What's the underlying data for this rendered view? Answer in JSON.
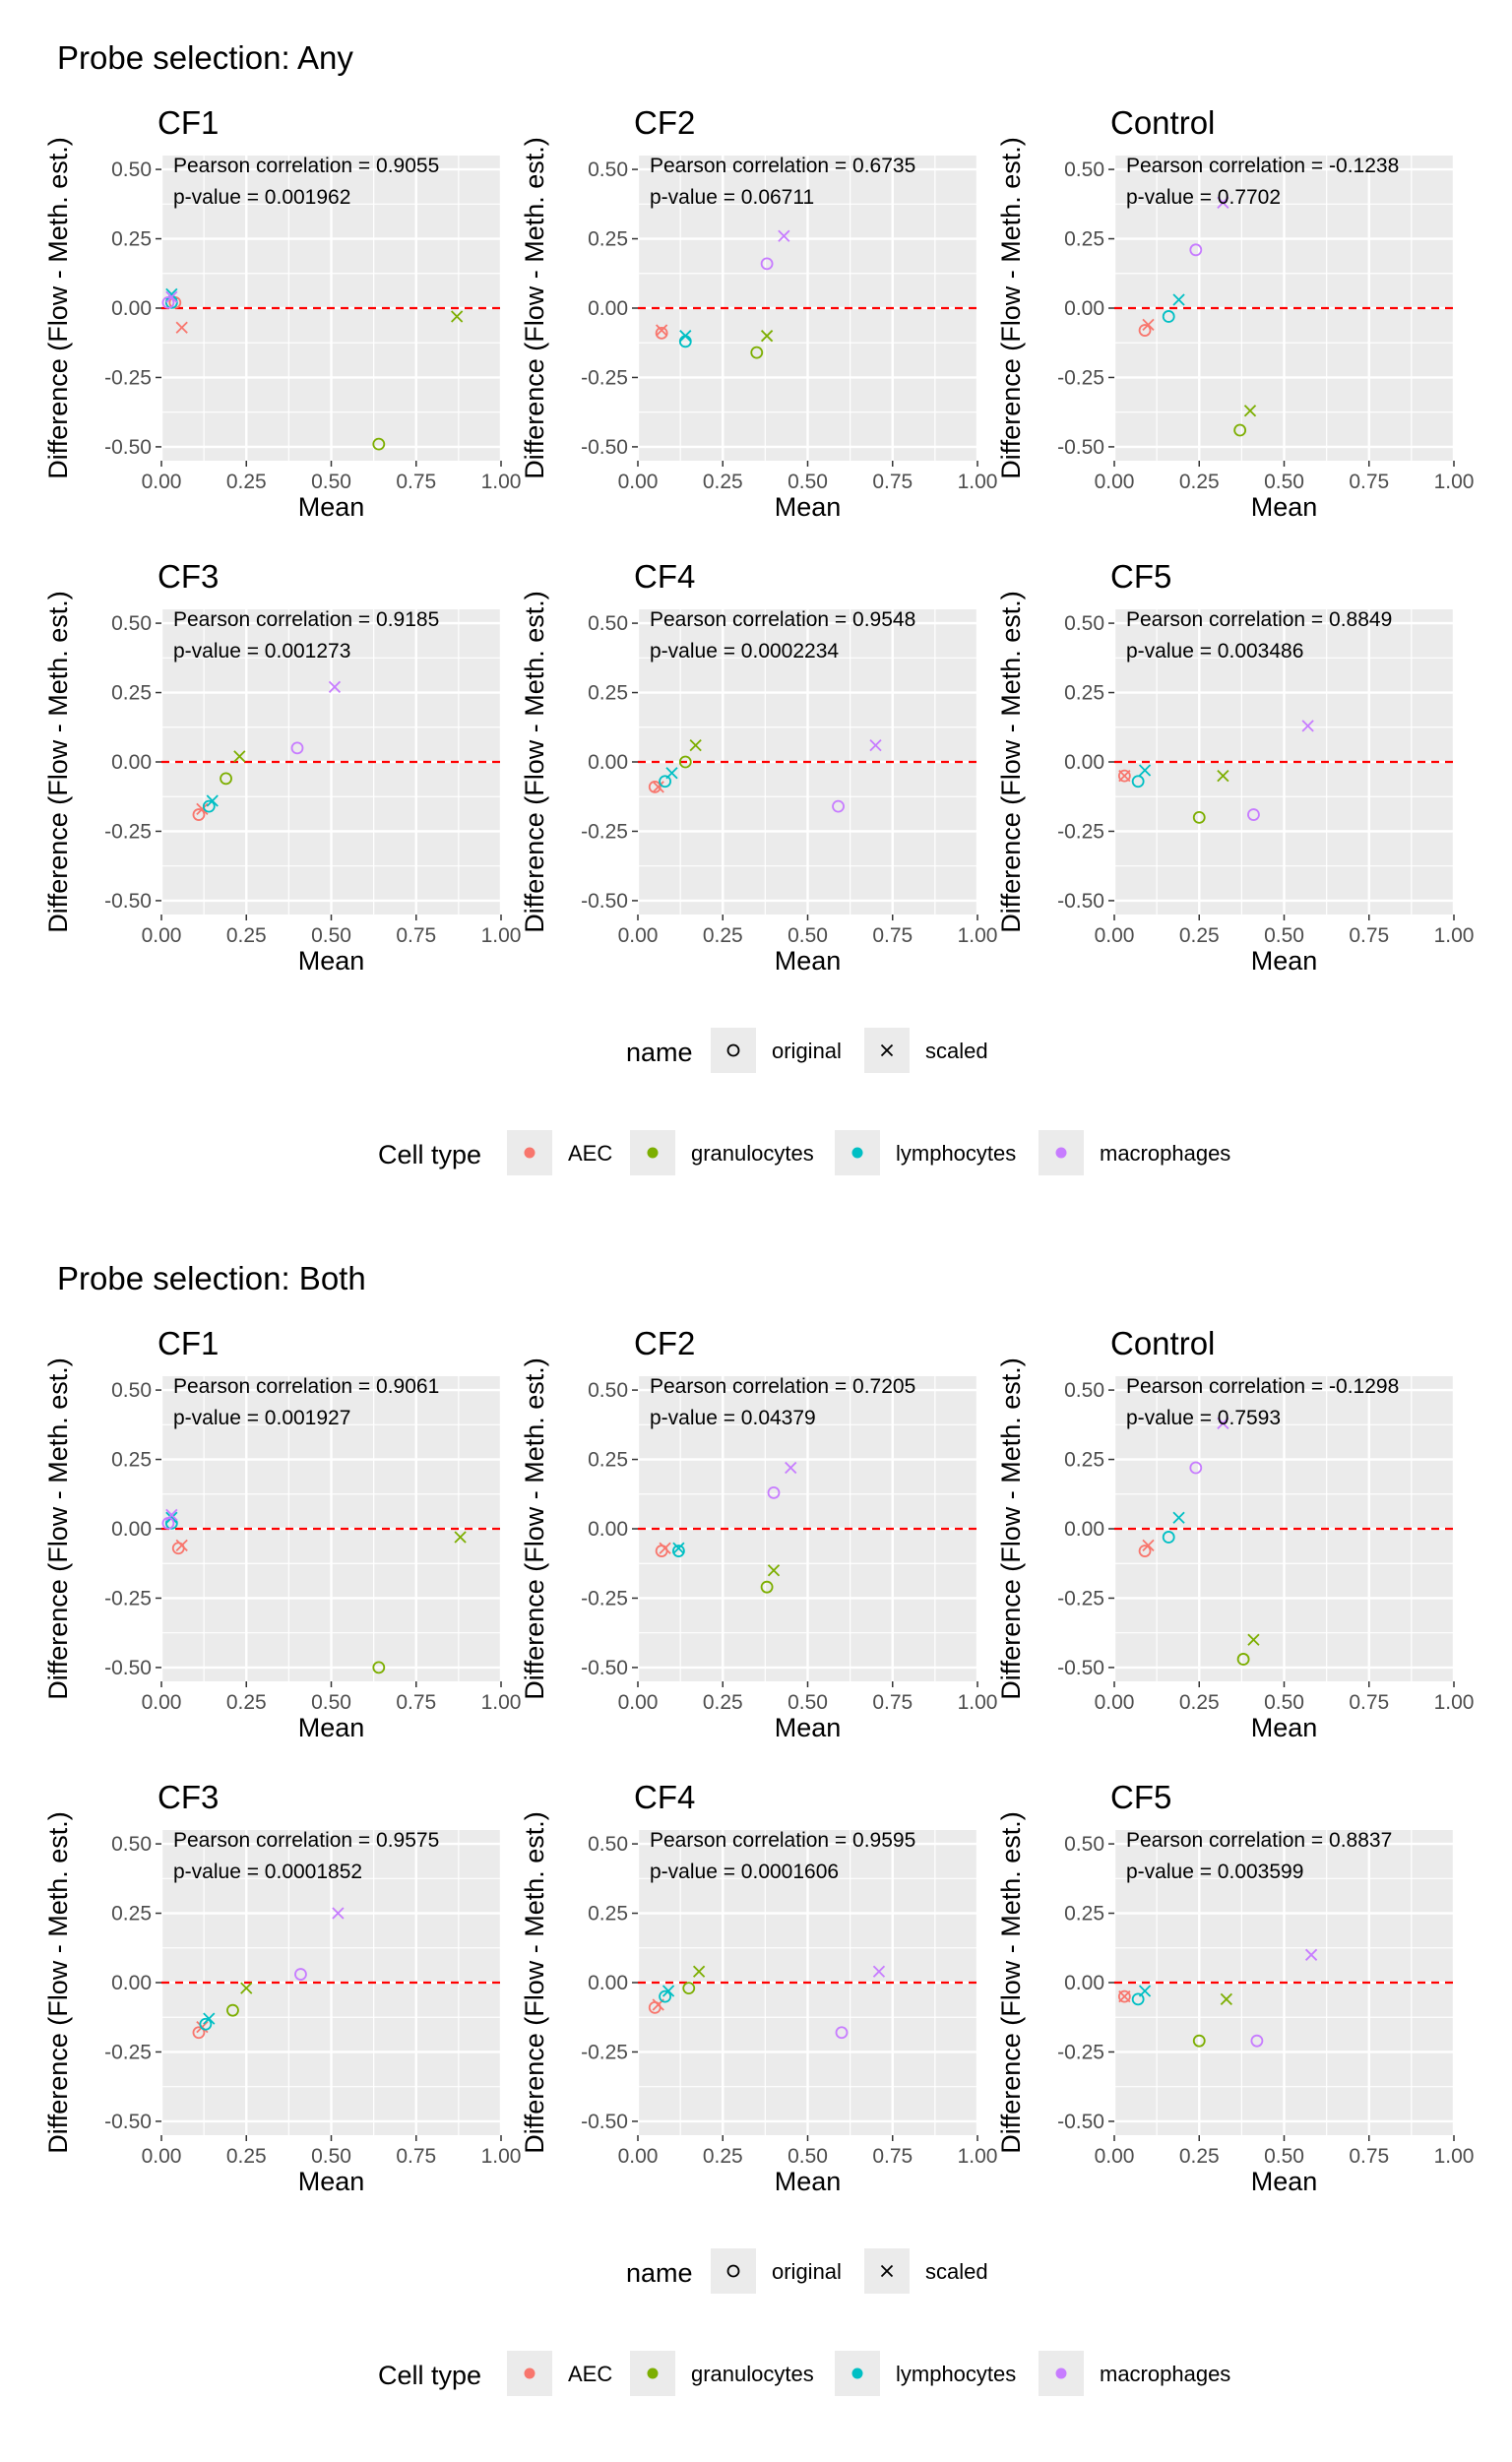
{
  "colors": {
    "AEC": "#F8766D",
    "granulocytes": "#7CAE00",
    "lymphocytes": "#00BFC4",
    "macrophages": "#C77CFF",
    "panel_bg": "#EBEBEB",
    "grid": "#FFFFFF",
    "ref_line": "#FF0000"
  },
  "legend": {
    "name_title": "name",
    "shape_items": [
      {
        "key": "original",
        "label": "original",
        "shape": "circle"
      },
      {
        "key": "scaled",
        "label": "scaled",
        "shape": "cross"
      }
    ],
    "color_title": "Cell type",
    "color_items": [
      {
        "key": "AEC",
        "label": "AEC"
      },
      {
        "key": "granulocytes",
        "label": "granulocytes"
      },
      {
        "key": "lymphocytes",
        "label": "lymphocytes"
      },
      {
        "key": "macrophages",
        "label": "macrophages"
      }
    ]
  },
  "chart_data": [
    {
      "type": "scatter",
      "title": "Probe selection: Any",
      "xlabel": "Mean",
      "ylabel": "Difference (Flow - Meth. est.)",
      "xlim": [
        0,
        1
      ],
      "ylim": [
        -0.55,
        0.55
      ],
      "x_ticks": [
        "0.00",
        "0.25",
        "0.50",
        "0.75",
        "1.00"
      ],
      "y_ticks": [
        "-0.50",
        "-0.25",
        "0.00",
        "0.25",
        "0.50"
      ],
      "reference_line_y": 0,
      "grid": true,
      "panels": [
        {
          "name": "CF1",
          "corr_label": "Pearson correlation = 0.9055",
          "p_label": "p-value = 0.001962",
          "points": [
            {
              "cell": "AEC",
              "type": "original",
              "x": 0.04,
              "y": 0.02
            },
            {
              "cell": "AEC",
              "type": "scaled",
              "x": 0.06,
              "y": -0.07
            },
            {
              "cell": "granulocytes",
              "type": "original",
              "x": 0.64,
              "y": -0.49
            },
            {
              "cell": "granulocytes",
              "type": "scaled",
              "x": 0.87,
              "y": -0.03
            },
            {
              "cell": "lymphocytes",
              "type": "original",
              "x": 0.03,
              "y": 0.02
            },
            {
              "cell": "lymphocytes",
              "type": "scaled",
              "x": 0.03,
              "y": 0.05
            },
            {
              "cell": "macrophages",
              "type": "original",
              "x": 0.02,
              "y": 0.02
            },
            {
              "cell": "macrophages",
              "type": "scaled",
              "x": 0.03,
              "y": 0.04
            }
          ]
        },
        {
          "name": "CF2",
          "corr_label": "Pearson correlation = 0.6735",
          "p_label": "p-value = 0.06711",
          "points": [
            {
              "cell": "AEC",
              "type": "original",
              "x": 0.07,
              "y": -0.09
            },
            {
              "cell": "AEC",
              "type": "scaled",
              "x": 0.07,
              "y": -0.08
            },
            {
              "cell": "granulocytes",
              "type": "original",
              "x": 0.35,
              "y": -0.16
            },
            {
              "cell": "granulocytes",
              "type": "scaled",
              "x": 0.38,
              "y": -0.1
            },
            {
              "cell": "lymphocytes",
              "type": "original",
              "x": 0.14,
              "y": -0.12
            },
            {
              "cell": "lymphocytes",
              "type": "scaled",
              "x": 0.14,
              "y": -0.1
            },
            {
              "cell": "macrophages",
              "type": "original",
              "x": 0.38,
              "y": 0.16
            },
            {
              "cell": "macrophages",
              "type": "scaled",
              "x": 0.43,
              "y": 0.26
            }
          ]
        },
        {
          "name": "Control",
          "corr_label": "Pearson correlation = -0.1238",
          "p_label": "p-value = 0.7702",
          "points": [
            {
              "cell": "AEC",
              "type": "original",
              "x": 0.09,
              "y": -0.08
            },
            {
              "cell": "AEC",
              "type": "scaled",
              "x": 0.1,
              "y": -0.06
            },
            {
              "cell": "granulocytes",
              "type": "original",
              "x": 0.37,
              "y": -0.44
            },
            {
              "cell": "granulocytes",
              "type": "scaled",
              "x": 0.4,
              "y": -0.37
            },
            {
              "cell": "lymphocytes",
              "type": "original",
              "x": 0.16,
              "y": -0.03
            },
            {
              "cell": "lymphocytes",
              "type": "scaled",
              "x": 0.19,
              "y": 0.03
            },
            {
              "cell": "macrophages",
              "type": "original",
              "x": 0.24,
              "y": 0.21
            },
            {
              "cell": "macrophages",
              "type": "scaled",
              "x": 0.32,
              "y": 0.38
            }
          ]
        },
        {
          "name": "CF3",
          "corr_label": "Pearson correlation = 0.9185",
          "p_label": "p-value = 0.001273",
          "points": [
            {
              "cell": "AEC",
              "type": "original",
              "x": 0.11,
              "y": -0.19
            },
            {
              "cell": "AEC",
              "type": "scaled",
              "x": 0.12,
              "y": -0.17
            },
            {
              "cell": "granulocytes",
              "type": "original",
              "x": 0.19,
              "y": -0.06
            },
            {
              "cell": "granulocytes",
              "type": "scaled",
              "x": 0.23,
              "y": 0.02
            },
            {
              "cell": "lymphocytes",
              "type": "original",
              "x": 0.14,
              "y": -0.16
            },
            {
              "cell": "lymphocytes",
              "type": "scaled",
              "x": 0.15,
              "y": -0.14
            },
            {
              "cell": "macrophages",
              "type": "original",
              "x": 0.4,
              "y": 0.05
            },
            {
              "cell": "macrophages",
              "type": "scaled",
              "x": 0.51,
              "y": 0.27
            }
          ]
        },
        {
          "name": "CF4",
          "corr_label": "Pearson correlation = 0.9548",
          "p_label": "p-value = 0.0002234",
          "points": [
            {
              "cell": "AEC",
              "type": "original",
              "x": 0.05,
              "y": -0.09
            },
            {
              "cell": "AEC",
              "type": "scaled",
              "x": 0.06,
              "y": -0.09
            },
            {
              "cell": "granulocytes",
              "type": "original",
              "x": 0.14,
              "y": 0.0
            },
            {
              "cell": "granulocytes",
              "type": "scaled",
              "x": 0.17,
              "y": 0.06
            },
            {
              "cell": "lymphocytes",
              "type": "original",
              "x": 0.08,
              "y": -0.07
            },
            {
              "cell": "lymphocytes",
              "type": "scaled",
              "x": 0.1,
              "y": -0.04
            },
            {
              "cell": "macrophages",
              "type": "original",
              "x": 0.59,
              "y": -0.16
            },
            {
              "cell": "macrophages",
              "type": "scaled",
              "x": 0.7,
              "y": 0.06
            }
          ]
        },
        {
          "name": "CF5",
          "corr_label": "Pearson correlation = 0.8849",
          "p_label": "p-value = 0.003486",
          "points": [
            {
              "cell": "AEC",
              "type": "original",
              "x": 0.03,
              "y": -0.05
            },
            {
              "cell": "AEC",
              "type": "scaled",
              "x": 0.03,
              "y": -0.05
            },
            {
              "cell": "granulocytes",
              "type": "original",
              "x": 0.25,
              "y": -0.2
            },
            {
              "cell": "granulocytes",
              "type": "scaled",
              "x": 0.32,
              "y": -0.05
            },
            {
              "cell": "lymphocytes",
              "type": "original",
              "x": 0.07,
              "y": -0.07
            },
            {
              "cell": "lymphocytes",
              "type": "scaled",
              "x": 0.09,
              "y": -0.03
            },
            {
              "cell": "macrophages",
              "type": "original",
              "x": 0.41,
              "y": -0.19
            },
            {
              "cell": "macrophages",
              "type": "scaled",
              "x": 0.57,
              "y": 0.13
            }
          ]
        }
      ]
    },
    {
      "type": "scatter",
      "title": "Probe selection: Both",
      "xlabel": "Mean",
      "ylabel": "Difference (Flow - Meth. est.)",
      "xlim": [
        0,
        1
      ],
      "ylim": [
        -0.55,
        0.55
      ],
      "x_ticks": [
        "0.00",
        "0.25",
        "0.50",
        "0.75",
        "1.00"
      ],
      "y_ticks": [
        "-0.50",
        "-0.25",
        "0.00",
        "0.25",
        "0.50"
      ],
      "reference_line_y": 0,
      "grid": true,
      "panels": [
        {
          "name": "CF1",
          "corr_label": "Pearson correlation = 0.9061",
          "p_label": "p-value = 0.001927",
          "points": [
            {
              "cell": "AEC",
              "type": "original",
              "x": 0.05,
              "y": -0.07
            },
            {
              "cell": "AEC",
              "type": "scaled",
              "x": 0.06,
              "y": -0.06
            },
            {
              "cell": "granulocytes",
              "type": "original",
              "x": 0.64,
              "y": -0.5
            },
            {
              "cell": "granulocytes",
              "type": "scaled",
              "x": 0.88,
              "y": -0.03
            },
            {
              "cell": "lymphocytes",
              "type": "original",
              "x": 0.03,
              "y": 0.02
            },
            {
              "cell": "lymphocytes",
              "type": "scaled",
              "x": 0.03,
              "y": 0.04
            },
            {
              "cell": "macrophages",
              "type": "original",
              "x": 0.02,
              "y": 0.02
            },
            {
              "cell": "macrophages",
              "type": "scaled",
              "x": 0.03,
              "y": 0.05
            }
          ]
        },
        {
          "name": "CF2",
          "corr_label": "Pearson correlation = 0.7205",
          "p_label": "p-value = 0.04379",
          "points": [
            {
              "cell": "AEC",
              "type": "original",
              "x": 0.07,
              "y": -0.08
            },
            {
              "cell": "AEC",
              "type": "scaled",
              "x": 0.08,
              "y": -0.07
            },
            {
              "cell": "granulocytes",
              "type": "original",
              "x": 0.38,
              "y": -0.21
            },
            {
              "cell": "granulocytes",
              "type": "scaled",
              "x": 0.4,
              "y": -0.15
            },
            {
              "cell": "lymphocytes",
              "type": "original",
              "x": 0.12,
              "y": -0.08
            },
            {
              "cell": "lymphocytes",
              "type": "scaled",
              "x": 0.12,
              "y": -0.07
            },
            {
              "cell": "macrophages",
              "type": "original",
              "x": 0.4,
              "y": 0.13
            },
            {
              "cell": "macrophages",
              "type": "scaled",
              "x": 0.45,
              "y": 0.22
            }
          ]
        },
        {
          "name": "Control",
          "corr_label": "Pearson correlation = -0.1298",
          "p_label": "p-value = 0.7593",
          "points": [
            {
              "cell": "AEC",
              "type": "original",
              "x": 0.09,
              "y": -0.08
            },
            {
              "cell": "AEC",
              "type": "scaled",
              "x": 0.1,
              "y": -0.06
            },
            {
              "cell": "granulocytes",
              "type": "original",
              "x": 0.38,
              "y": -0.47
            },
            {
              "cell": "granulocytes",
              "type": "scaled",
              "x": 0.41,
              "y": -0.4
            },
            {
              "cell": "lymphocytes",
              "type": "original",
              "x": 0.16,
              "y": -0.03
            },
            {
              "cell": "lymphocytes",
              "type": "scaled",
              "x": 0.19,
              "y": 0.04
            },
            {
              "cell": "macrophages",
              "type": "original",
              "x": 0.24,
              "y": 0.22
            },
            {
              "cell": "macrophages",
              "type": "scaled",
              "x": 0.32,
              "y": 0.38
            }
          ]
        },
        {
          "name": "CF3",
          "corr_label": "Pearson correlation = 0.9575",
          "p_label": "p-value = 0.0001852",
          "points": [
            {
              "cell": "AEC",
              "type": "original",
              "x": 0.11,
              "y": -0.18
            },
            {
              "cell": "AEC",
              "type": "scaled",
              "x": 0.12,
              "y": -0.16
            },
            {
              "cell": "granulocytes",
              "type": "original",
              "x": 0.21,
              "y": -0.1
            },
            {
              "cell": "granulocytes",
              "type": "scaled",
              "x": 0.25,
              "y": -0.02
            },
            {
              "cell": "lymphocytes",
              "type": "original",
              "x": 0.13,
              "y": -0.15
            },
            {
              "cell": "lymphocytes",
              "type": "scaled",
              "x": 0.14,
              "y": -0.13
            },
            {
              "cell": "macrophages",
              "type": "original",
              "x": 0.41,
              "y": 0.03
            },
            {
              "cell": "macrophages",
              "type": "scaled",
              "x": 0.52,
              "y": 0.25
            }
          ]
        },
        {
          "name": "CF4",
          "corr_label": "Pearson correlation = 0.9595",
          "p_label": "p-value = 0.0001606",
          "points": [
            {
              "cell": "AEC",
              "type": "original",
              "x": 0.05,
              "y": -0.09
            },
            {
              "cell": "AEC",
              "type": "scaled",
              "x": 0.06,
              "y": -0.08
            },
            {
              "cell": "granulocytes",
              "type": "original",
              "x": 0.15,
              "y": -0.02
            },
            {
              "cell": "granulocytes",
              "type": "scaled",
              "x": 0.18,
              "y": 0.04
            },
            {
              "cell": "lymphocytes",
              "type": "original",
              "x": 0.08,
              "y": -0.05
            },
            {
              "cell": "lymphocytes",
              "type": "scaled",
              "x": 0.09,
              "y": -0.03
            },
            {
              "cell": "macrophages",
              "type": "original",
              "x": 0.6,
              "y": -0.18
            },
            {
              "cell": "macrophages",
              "type": "scaled",
              "x": 0.71,
              "y": 0.04
            }
          ]
        },
        {
          "name": "CF5",
          "corr_label": "Pearson correlation = 0.8837",
          "p_label": "p-value = 0.003599",
          "points": [
            {
              "cell": "AEC",
              "type": "original",
              "x": 0.03,
              "y": -0.05
            },
            {
              "cell": "AEC",
              "type": "scaled",
              "x": 0.03,
              "y": -0.05
            },
            {
              "cell": "granulocytes",
              "type": "original",
              "x": 0.25,
              "y": -0.21
            },
            {
              "cell": "granulocytes",
              "type": "scaled",
              "x": 0.33,
              "y": -0.06
            },
            {
              "cell": "lymphocytes",
              "type": "original",
              "x": 0.07,
              "y": -0.06
            },
            {
              "cell": "lymphocytes",
              "type": "scaled",
              "x": 0.09,
              "y": -0.03
            },
            {
              "cell": "macrophages",
              "type": "original",
              "x": 0.42,
              "y": -0.21
            },
            {
              "cell": "macrophages",
              "type": "scaled",
              "x": 0.58,
              "y": 0.1
            }
          ]
        }
      ]
    }
  ]
}
